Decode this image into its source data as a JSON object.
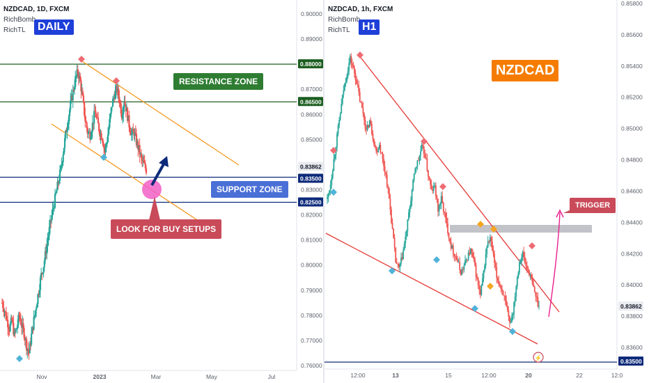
{
  "colors": {
    "up": "#26a69a",
    "down": "#ef5350",
    "orange": "#f59a23",
    "green_line": "#1b5e20",
    "navy_line": "#0d2a7a",
    "red_line": "#e53935",
    "magenta": "#e91e8c"
  },
  "left": {
    "header": {
      "symbol": "NZDCAD, 1D, FXCM",
      "indicator1": "RichBomb",
      "indicator2": "RichTL",
      "timeframe": "DAILY"
    },
    "labels": {
      "resistance": "RESISTANCE ZONE",
      "support": "SUPPORT ZONE",
      "buy": "LOOK FOR BUY SETUPS"
    },
    "price_tags": {
      "r1": "0.88000",
      "r2": "0.86500",
      "current": "0.83862",
      "s1": "0.83500",
      "s2": "0.82500"
    }
  },
  "right": {
    "header": {
      "symbol": "NZDCAD, 1h, FXCM",
      "indicator1": "RichBomb",
      "indicator2": "RichTL",
      "timeframe": "H1"
    },
    "labels": {
      "title": "NZDCAD",
      "trigger": "TRIGGER"
    },
    "price_tags": {
      "current": "0.83862",
      "support": "0.83500"
    }
  },
  "chart_data": [
    {
      "type": "candlestick",
      "title": "NZDCAD, 1D, FXCM",
      "timeframe": "DAILY",
      "x_tick_labels": [
        "Nov",
        "2023",
        "Mar",
        "May",
        "Jul"
      ],
      "y_tick_labels": [
        "0.90000",
        "0.89000",
        "0.88000",
        "0.87000",
        "0.86000",
        "0.85000",
        "0.84000",
        "0.83000",
        "0.82000",
        "0.81000",
        "0.80000",
        "0.79000",
        "0.78000",
        "0.77000",
        "0.76000"
      ],
      "ylim": [
        0.76,
        0.905
      ],
      "price_path": [
        0.785,
        0.782,
        0.778,
        0.775,
        0.778,
        0.772,
        0.775,
        0.78,
        0.776,
        0.773,
        0.768,
        0.765,
        0.772,
        0.778,
        0.784,
        0.79,
        0.796,
        0.8,
        0.806,
        0.812,
        0.818,
        0.823,
        0.828,
        0.833,
        0.838,
        0.845,
        0.852,
        0.858,
        0.864,
        0.869,
        0.874,
        0.877,
        0.873,
        0.866,
        0.858,
        0.853,
        0.852,
        0.856,
        0.861,
        0.857,
        0.853,
        0.851,
        0.845,
        0.85,
        0.857,
        0.864,
        0.868,
        0.87,
        0.866,
        0.86,
        0.866,
        0.861,
        0.856,
        0.852,
        0.853,
        0.849,
        0.846,
        0.842,
        0.84,
        0.838
      ],
      "horizontal_levels": [
        {
          "name": "resistance_top",
          "value": 0.88
        },
        {
          "name": "resistance_bottom",
          "value": 0.865
        },
        {
          "name": "support_top",
          "value": 0.835
        },
        {
          "name": "support_bottom",
          "value": 0.825
        }
      ],
      "current_price": 0.83862,
      "x_axis": "time",
      "y_axis": "price",
      "grid": false
    },
    {
      "type": "candlestick",
      "title": "NZDCAD, 1h, FXCM",
      "timeframe": "H1",
      "x_tick_labels": [
        "12:00",
        "13",
        "15",
        "12:00",
        "20",
        "22",
        "12:0"
      ],
      "y_tick_labels": [
        "0.85800",
        "0.85600",
        "0.85400",
        "0.85200",
        "0.85000",
        "0.84800",
        "0.84600",
        "0.84400",
        "0.84200",
        "0.84000",
        "0.83800",
        "0.83600"
      ],
      "ylim": [
        0.8347,
        0.8585
      ],
      "price_path": [
        0.8455,
        0.8465,
        0.848,
        0.8495,
        0.851,
        0.8525,
        0.8535,
        0.8545,
        0.8538,
        0.853,
        0.8518,
        0.851,
        0.8498,
        0.8505,
        0.8495,
        0.8485,
        0.849,
        0.848,
        0.847,
        0.8455,
        0.8435,
        0.8415,
        0.841,
        0.8418,
        0.843,
        0.8445,
        0.846,
        0.8475,
        0.848,
        0.8488,
        0.8483,
        0.847,
        0.846,
        0.8463,
        0.8448,
        0.8455,
        0.8445,
        0.8435,
        0.8425,
        0.842,
        0.8415,
        0.8408,
        0.8412,
        0.8418,
        0.8422,
        0.8415,
        0.8403,
        0.8393,
        0.8408,
        0.8425,
        0.843,
        0.8418,
        0.8405,
        0.84,
        0.8395,
        0.8385,
        0.8375,
        0.8383,
        0.84,
        0.8415,
        0.842,
        0.8412,
        0.8408,
        0.84,
        0.8393,
        0.8386
      ],
      "trendlines": [
        {
          "name": "upper_descending",
          "color": "red"
        },
        {
          "name": "lower_descending",
          "color": "red"
        }
      ],
      "horizontal_levels": [
        {
          "name": "trigger_zone",
          "value": 0.8435
        },
        {
          "name": "support",
          "value": 0.835
        }
      ],
      "current_price": 0.83862,
      "x_axis": "time",
      "y_axis": "price",
      "grid": false
    }
  ]
}
